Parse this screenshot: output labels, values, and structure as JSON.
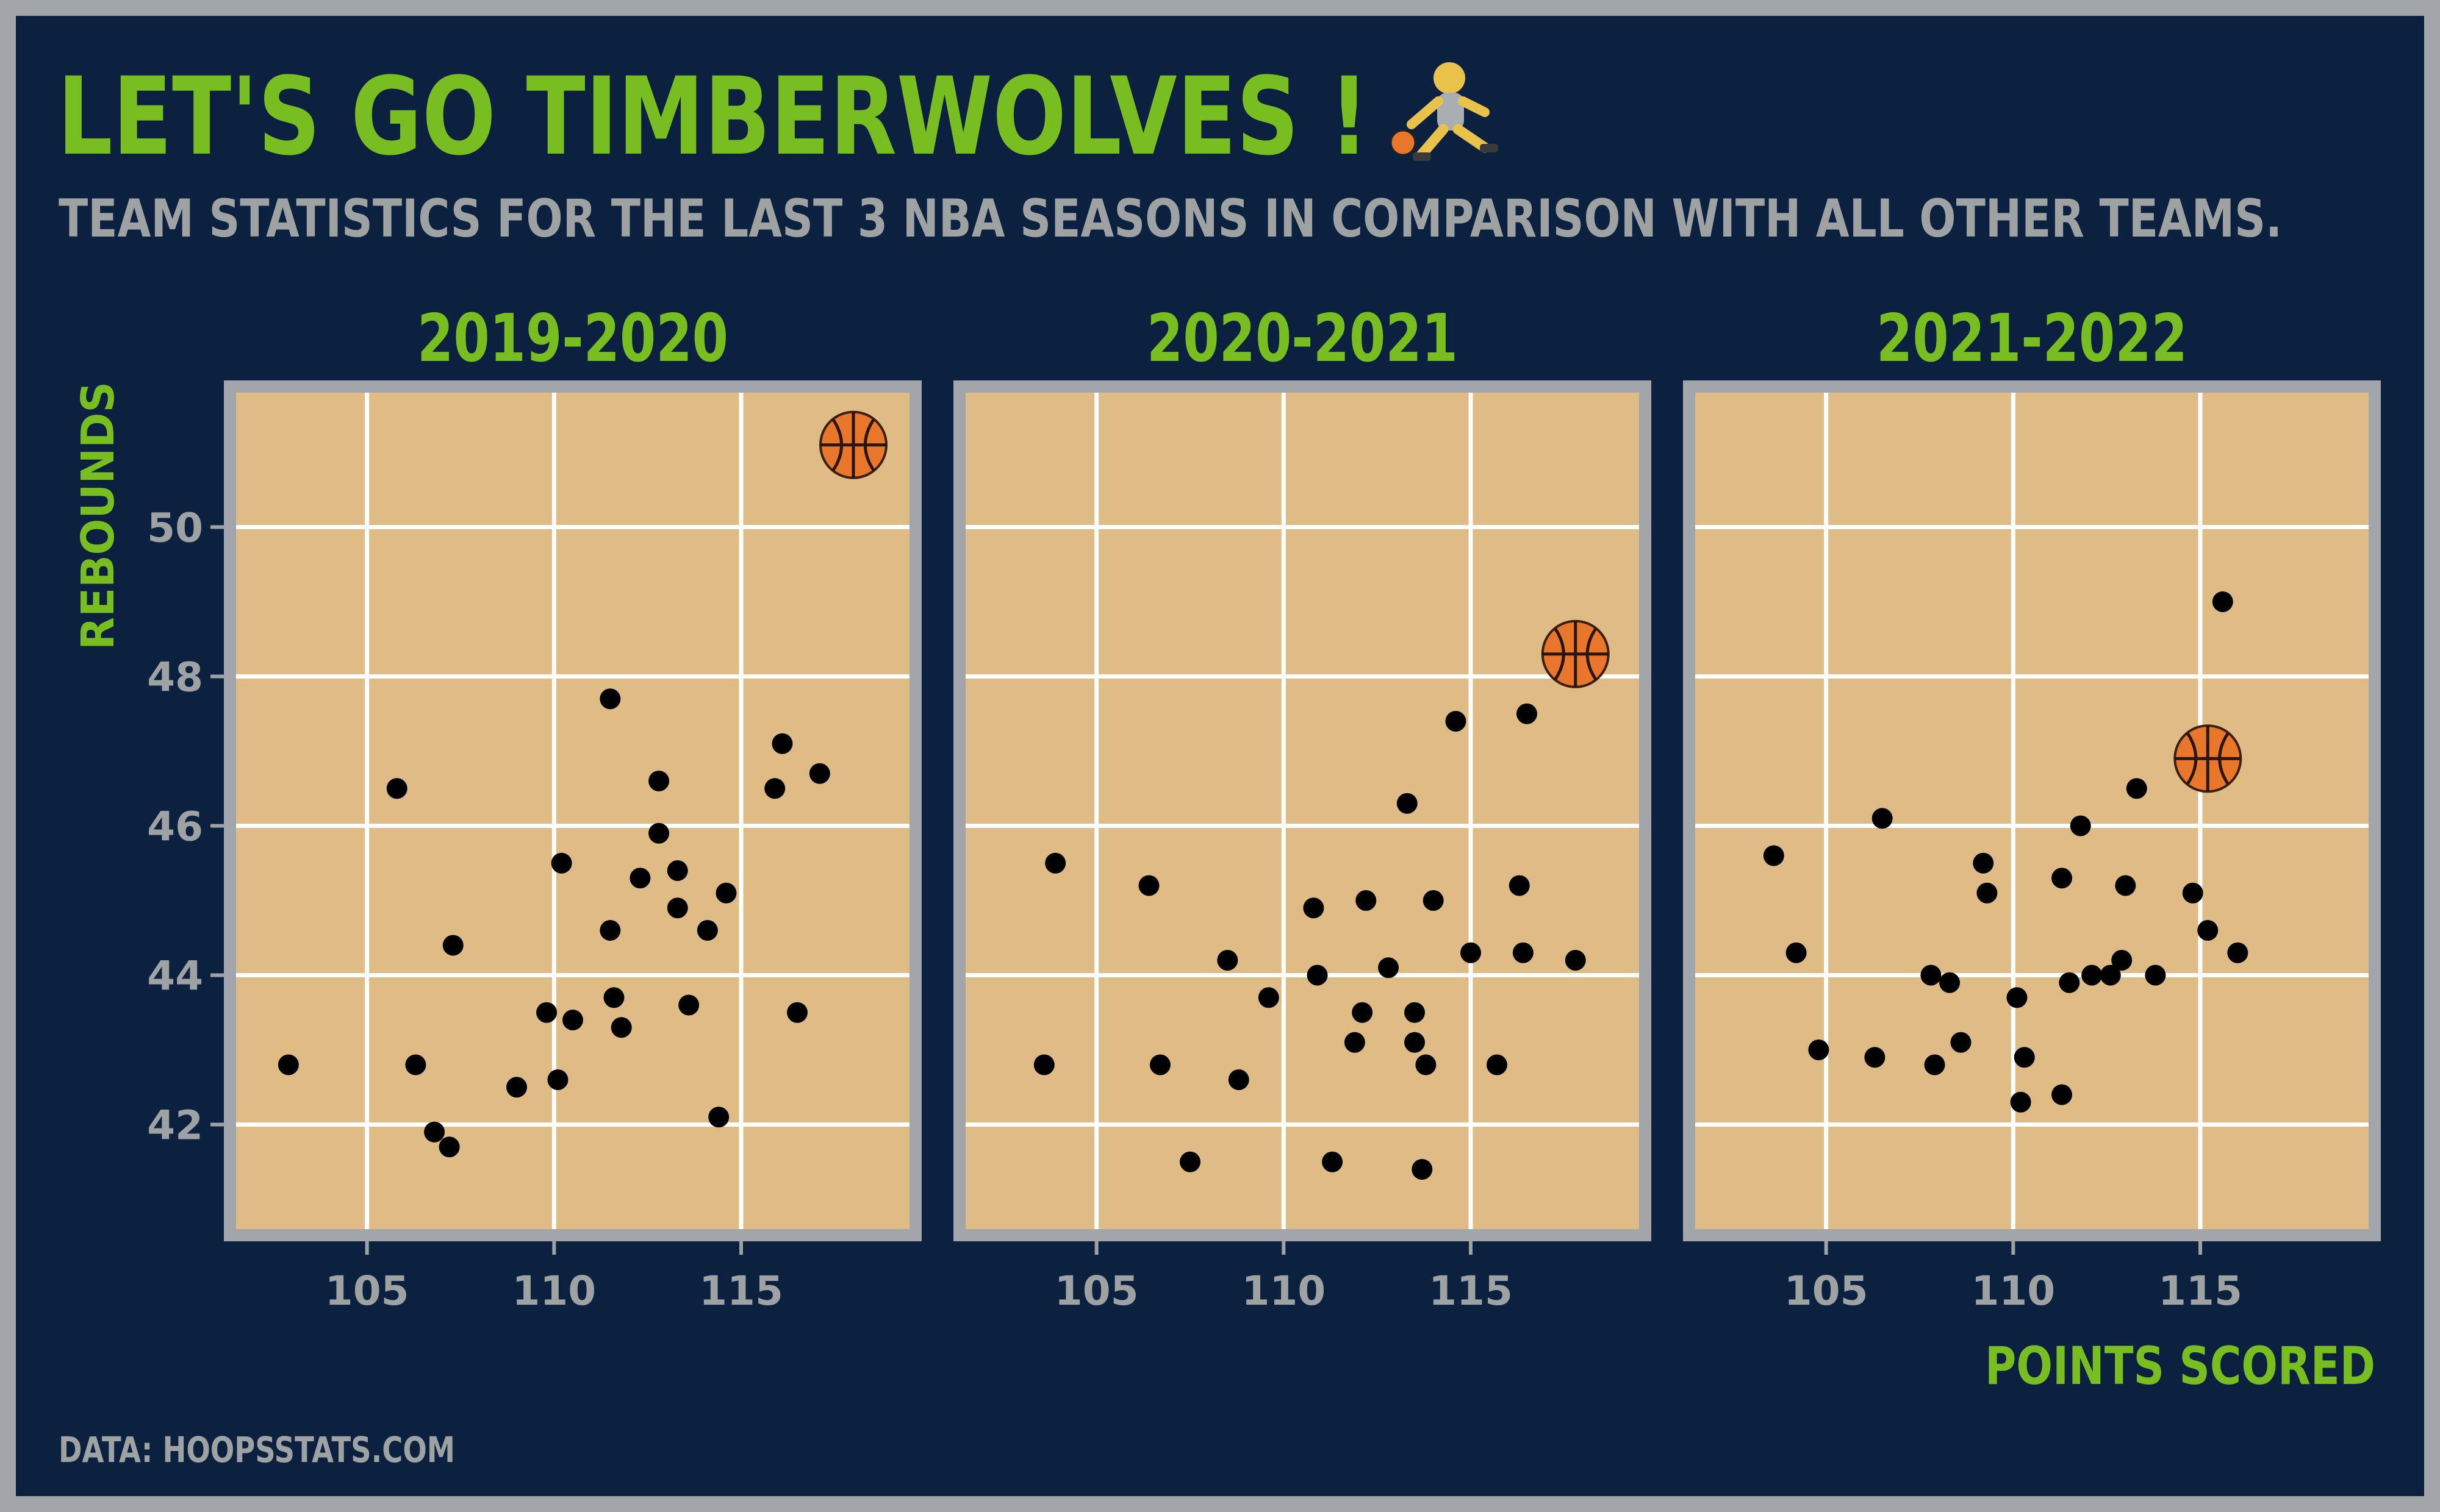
{
  "title": "LET'S GO  TIMBERWOLVES !",
  "subtitle": "TEAM STATISTICS FOR THE LAST 3 NBA SEASONS IN COMPARISON WITH ALL OTHER TEAMS.",
  "caption": "DATA: HOOPSSTATS.COM",
  "title_icon": "basketball-player-icon",
  "highlight_icon": "basketball-icon",
  "colors": {
    "background": "#0c2140",
    "border": "#a2a6ab",
    "accent_green": "#78be20",
    "grey_text": "#9ea2a2",
    "panel_fill": "#dfbb85",
    "grid": "#ffffff",
    "point": "#000000",
    "ball": "#e8762b"
  },
  "chart_data": {
    "type": "scatter",
    "xlabel": "POINTS SCORED",
    "ylabel": "REBOUNDS",
    "xlim": [
      101.5,
      119.5
    ],
    "ylim": [
      40.6,
      51.8
    ],
    "x_ticks": [
      105,
      110,
      115
    ],
    "y_ticks": [
      42,
      44,
      46,
      48,
      50
    ],
    "grid": true,
    "legend": "none",
    "panels": [
      {
        "name": "2019-2020",
        "points": [
          [
            102.9,
            42.8
          ],
          [
            105.8,
            46.5
          ],
          [
            106.3,
            42.8
          ],
          [
            106.8,
            41.9
          ],
          [
            107.2,
            41.7
          ],
          [
            107.3,
            44.4
          ],
          [
            109.0,
            42.5
          ],
          [
            109.8,
            43.5
          ],
          [
            110.1,
            42.6
          ],
          [
            110.2,
            45.5
          ],
          [
            110.5,
            43.4
          ],
          [
            111.5,
            47.7
          ],
          [
            111.5,
            44.6
          ],
          [
            111.6,
            43.7
          ],
          [
            111.8,
            43.3
          ],
          [
            112.3,
            45.3
          ],
          [
            112.8,
            46.6
          ],
          [
            112.8,
            45.9
          ],
          [
            113.3,
            45.4
          ],
          [
            113.3,
            44.9
          ],
          [
            113.6,
            43.6
          ],
          [
            114.1,
            44.6
          ],
          [
            114.4,
            42.1
          ],
          [
            114.6,
            45.1
          ],
          [
            115.9,
            46.5
          ],
          [
            116.1,
            47.1
          ],
          [
            116.5,
            43.5
          ],
          [
            117.1,
            46.7
          ]
        ],
        "highlight": [
          118.0,
          51.1
        ]
      },
      {
        "name": "2020-2021",
        "points": [
          [
            103.6,
            42.8
          ],
          [
            103.9,
            45.5
          ],
          [
            106.4,
            45.2
          ],
          [
            106.7,
            42.8
          ],
          [
            107.5,
            41.5
          ],
          [
            108.5,
            44.2
          ],
          [
            108.8,
            42.6
          ],
          [
            109.6,
            43.7
          ],
          [
            110.8,
            44.9
          ],
          [
            110.9,
            44.0
          ],
          [
            111.3,
            41.5
          ],
          [
            111.9,
            43.1
          ],
          [
            112.1,
            43.5
          ],
          [
            112.2,
            45.0
          ],
          [
            112.8,
            44.1
          ],
          [
            113.3,
            46.3
          ],
          [
            113.5,
            43.5
          ],
          [
            113.5,
            43.1
          ],
          [
            113.7,
            41.4
          ],
          [
            113.8,
            42.8
          ],
          [
            114.0,
            45.0
          ],
          [
            114.6,
            47.4
          ],
          [
            115.0,
            44.3
          ],
          [
            115.7,
            42.8
          ],
          [
            116.3,
            45.2
          ],
          [
            116.4,
            44.3
          ],
          [
            116.5,
            47.5
          ],
          [
            117.8,
            44.2
          ]
        ],
        "highlight": [
          117.8,
          48.3
        ]
      },
      {
        "name": "2021-2022",
        "points": [
          [
            103.6,
            45.6
          ],
          [
            104.2,
            44.3
          ],
          [
            104.8,
            43.0
          ],
          [
            106.3,
            42.9
          ],
          [
            106.5,
            46.1
          ],
          [
            107.8,
            44.0
          ],
          [
            107.9,
            42.8
          ],
          [
            108.3,
            43.9
          ],
          [
            108.6,
            43.1
          ],
          [
            109.2,
            45.5
          ],
          [
            109.3,
            45.1
          ],
          [
            110.1,
            43.7
          ],
          [
            110.2,
            42.3
          ],
          [
            110.3,
            42.9
          ],
          [
            111.3,
            45.3
          ],
          [
            111.3,
            42.4
          ],
          [
            111.5,
            43.9
          ],
          [
            111.8,
            46.0
          ],
          [
            112.1,
            44.0
          ],
          [
            112.6,
            44.0
          ],
          [
            113.0,
            45.2
          ],
          [
            112.9,
            44.2
          ],
          [
            113.3,
            46.5
          ],
          [
            113.8,
            44.0
          ],
          [
            114.8,
            45.1
          ],
          [
            115.2,
            44.6
          ],
          [
            115.6,
            49.0
          ],
          [
            116.0,
            44.3
          ]
        ],
        "highlight": [
          115.2,
          46.9
        ]
      }
    ]
  }
}
